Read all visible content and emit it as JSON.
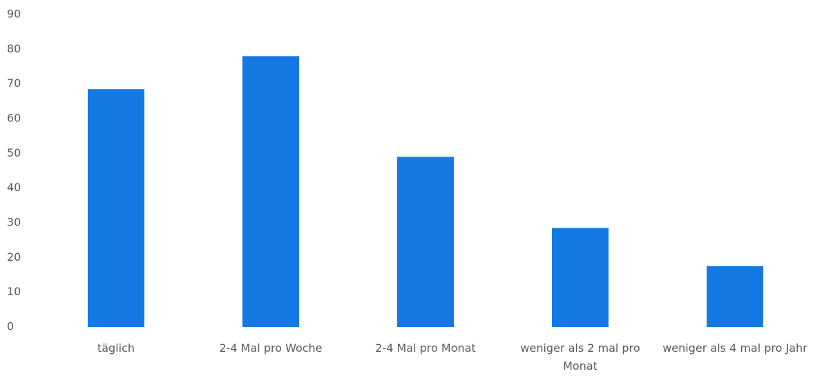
{
  "chart_data": {
    "type": "bar",
    "categories": [
      "täglich",
      "2-4 Mal pro Woche",
      "2-4 Mal pro Monat",
      "weniger als 2 mal pro Monat",
      "weniger als 4 mal pro Jahr"
    ],
    "values": [
      68.5,
      78,
      49,
      28.5,
      17.5
    ],
    "color": "#1479e3",
    "ylim": [
      0,
      90
    ],
    "yticks": [
      0,
      10,
      20,
      30,
      40,
      50,
      60,
      70,
      80,
      90
    ],
    "grid": false
  }
}
